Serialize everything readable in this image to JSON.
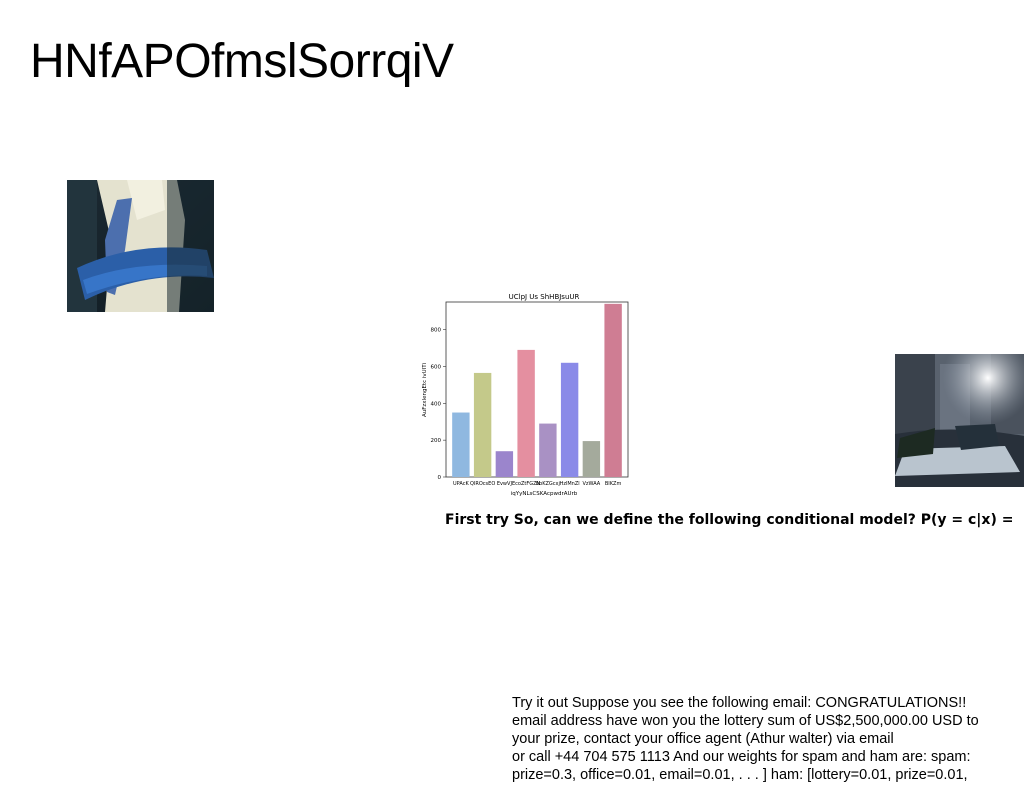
{
  "slide": {
    "title": "HNfAPOfmslSorrqiV",
    "heading_line": "First try So, can we define the following conditional model? P(y = c|x) =",
    "body_lines": [
      "Try it out Suppose you see the following email: CONGRATULATIONS!!",
      "email address have won you the lottery sum of US$2,500,000.00 USD to",
      "your prize, contact your office agent (Athur walter) via email",
      "or call +44 704 575 1113 And our weights for spam and ham are: spam:",
      "prize=0.3, office=0.01, email=0.01, . . . ] ham: [lottery=0.01, prize=0.01,"
    ]
  },
  "chart_data": {
    "type": "bar",
    "title": "UClpJ Us ShHBJsuUR",
    "xlabel": "iqYyNLsCSKAcpwdrAUrb",
    "ylabel": "AuFzxlengEtc ivUITi",
    "categories": [
      "UPAcK",
      "QIROcsEO",
      "EvwVJ",
      "EcoZtFGZN",
      "bbKZGcxj",
      "HzlMnZl",
      "VzWAA",
      "BIKZm"
    ],
    "values": [
      350,
      565,
      140,
      690,
      290,
      620,
      195,
      940
    ],
    "colors": [
      "#8fb8e0",
      "#c4c98a",
      "#9b85cc",
      "#e48fa0",
      "#a991c4",
      "#8a8ae8",
      "#a4aa9c",
      "#cf7d93"
    ],
    "ylim": [
      0,
      950
    ],
    "yticks": [
      0,
      200,
      400,
      600,
      800
    ],
    "grid": false
  }
}
